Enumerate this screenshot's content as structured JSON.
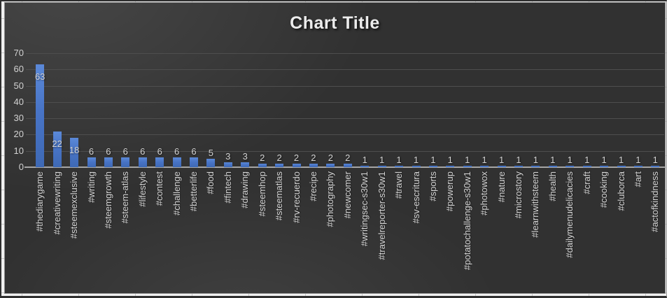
{
  "title": "Chart Title",
  "chart_data": {
    "type": "bar",
    "title": "Chart Title",
    "xlabel": "",
    "ylabel": "",
    "ylim": [
      0,
      70
    ],
    "yticks": [
      0,
      10,
      20,
      30,
      40,
      50,
      60,
      70
    ],
    "grid": true,
    "legend": false,
    "categories": [
      "#thediarygame",
      "#creativewriting",
      "#steemexclusive",
      "#writing",
      "#steemgrowth",
      "#steem-atlas",
      "#lifestyle",
      "#contest",
      "#challenge",
      "#betterlife",
      "#food",
      "#fintech",
      "#drawing",
      "#steemhop",
      "#steematlas",
      "#rv-recuerdo",
      "#recipe",
      "#photography",
      "#newcomer",
      "#writingsec-s30w1",
      "#travelreporter-s30w1",
      "#travel",
      "#sv-escritura",
      "#sports",
      "#powerup",
      "#potatochallenge-s30w1",
      "#photowox",
      "#nature",
      "#microstory",
      "#learnwithsteem",
      "#health",
      "#dailymenudelicacies",
      "#craft",
      "#cooking",
      "#cluborca",
      "#art",
      "#actofkindness"
    ],
    "values": [
      63,
      22,
      18,
      6,
      6,
      6,
      6,
      6,
      6,
      6,
      5,
      3,
      3,
      2,
      2,
      2,
      2,
      2,
      2,
      1,
      1,
      1,
      1,
      1,
      1,
      1,
      1,
      1,
      1,
      1,
      1,
      1,
      1,
      1,
      1,
      1,
      1
    ],
    "data_labels": true,
    "colors": {
      "bar": "#4472C4",
      "chart_background": "#3A3A3A",
      "gridline": "#4E4E4E",
      "axis_line": "#A6A6A6",
      "text": "#D2D2D2",
      "title_text": "#ECECEC",
      "page_background": "#F1F1F1"
    }
  }
}
